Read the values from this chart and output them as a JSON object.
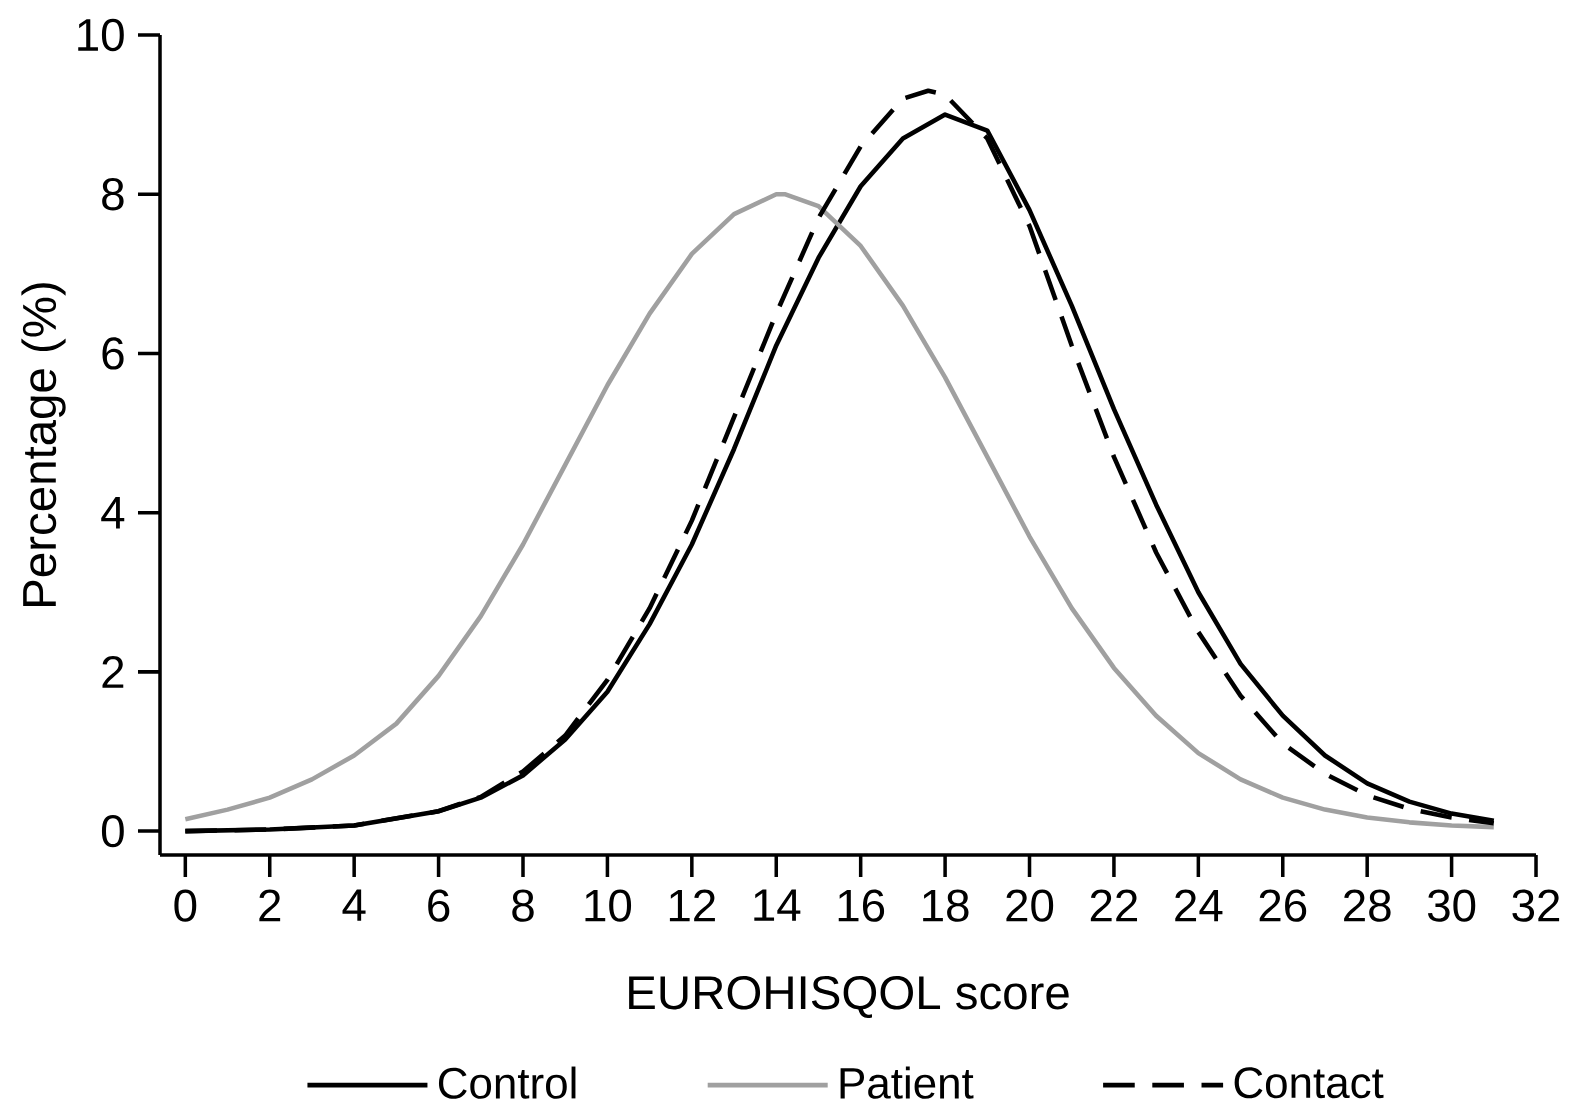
{
  "chart_data": {
    "type": "line",
    "xlabel": "EUROHISQOL score",
    "ylabel": "Percentage (%)",
    "xlim": [
      -0.6,
      32
    ],
    "ylim": [
      -0.3,
      10
    ],
    "xticks": [
      0,
      2,
      4,
      6,
      8,
      10,
      12,
      14,
      16,
      18,
      20,
      22,
      24,
      26,
      28,
      30,
      32
    ],
    "yticks": [
      0,
      2,
      4,
      6,
      8,
      10
    ],
    "legend": "bottom",
    "series": [
      {
        "name": "Control",
        "color": "#000000",
        "line_style": "solid",
        "x": [
          0,
          2,
          4,
          6,
          7,
          8,
          9,
          10,
          11,
          12,
          13,
          14,
          15,
          16,
          17,
          18,
          19,
          20,
          21,
          22,
          23,
          24,
          25,
          26,
          27,
          28,
          29,
          30,
          31
        ],
        "values": [
          0,
          0.02,
          0.07,
          0.25,
          0.42,
          0.7,
          1.15,
          1.75,
          2.6,
          3.6,
          4.8,
          6.1,
          7.2,
          8.1,
          8.7,
          9.0,
          8.8,
          7.8,
          6.6,
          5.3,
          4.1,
          3.0,
          2.1,
          1.45,
          0.95,
          0.6,
          0.37,
          0.22,
          0.13
        ]
      },
      {
        "name": "Patient",
        "color": "#a0a0a0",
        "line_style": "solid",
        "x": [
          0,
          1,
          2,
          3,
          4,
          5,
          6,
          7,
          8,
          9,
          10,
          11,
          12,
          13,
          14,
          14.2,
          15,
          16,
          17,
          18,
          19,
          20,
          21,
          22,
          23,
          24,
          25,
          26,
          27,
          28,
          29,
          30,
          31
        ],
        "values": [
          0.15,
          0.27,
          0.42,
          0.65,
          0.95,
          1.35,
          1.95,
          2.7,
          3.6,
          4.6,
          5.6,
          6.5,
          7.25,
          7.75,
          8.0,
          8.0,
          7.85,
          7.35,
          6.6,
          5.7,
          4.7,
          3.7,
          2.8,
          2.05,
          1.45,
          0.98,
          0.65,
          0.42,
          0.27,
          0.17,
          0.11,
          0.07,
          0.05
        ]
      },
      {
        "name": "Contact",
        "color": "#000000",
        "line_style": "dashed",
        "x": [
          0,
          2,
          4,
          6,
          7,
          8,
          9,
          10,
          11,
          12,
          13,
          14,
          15,
          16,
          17,
          17.6,
          18,
          19,
          20,
          21,
          22,
          23,
          24,
          25,
          26,
          27,
          28,
          29,
          30,
          31
        ],
        "values": [
          0,
          0.02,
          0.07,
          0.25,
          0.43,
          0.75,
          1.2,
          1.9,
          2.8,
          3.9,
          5.2,
          6.5,
          7.7,
          8.6,
          9.2,
          9.3,
          9.25,
          8.7,
          7.6,
          6.1,
          4.7,
          3.5,
          2.5,
          1.7,
          1.1,
          0.72,
          0.45,
          0.28,
          0.17,
          0.1
        ]
      }
    ]
  }
}
